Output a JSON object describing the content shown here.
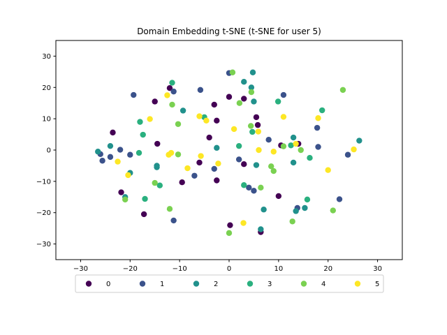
{
  "chart_data": {
    "type": "scatter",
    "title": "Domain Embedding t-SNE (t-SNE for user 5)",
    "xlim": [
      -35,
      35
    ],
    "ylim": [
      -35,
      35
    ],
    "xticks": [
      -30,
      -20,
      -10,
      0,
      10,
      20,
      30
    ],
    "yticks": [
      -30,
      -20,
      -10,
      0,
      10,
      20,
      30
    ],
    "grid": false,
    "legend_position": "bottom-center",
    "series": [
      {
        "name": "0",
        "color": "#440154",
        "points": [
          [
            -12,
            19.8
          ],
          [
            -15,
            15.5
          ],
          [
            -23.5,
            5.6
          ],
          [
            -21.8,
            -13.5
          ],
          [
            -17.2,
            -20.5
          ],
          [
            -14.5,
            2
          ],
          [
            -9.5,
            -10.3
          ],
          [
            -3,
            14.5
          ],
          [
            -4,
            4
          ],
          [
            -6,
            -4
          ],
          [
            -2.5,
            9.4
          ],
          [
            -2.5,
            -9.7
          ],
          [
            0,
            17
          ],
          [
            3,
            16.4
          ],
          [
            5.5,
            10.5
          ],
          [
            5.8,
            8
          ],
          [
            3,
            -4.5
          ],
          [
            0.2,
            -24
          ],
          [
            6.4,
            -26.2
          ],
          [
            10,
            -14.7
          ],
          [
            10.5,
            1.5
          ],
          [
            14,
            2
          ]
        ]
      },
      {
        "name": "1",
        "color": "#3b528b",
        "points": [
          [
            -26,
            -1.3
          ],
          [
            -25.6,
            -3.4
          ],
          [
            -24,
            -2.2
          ],
          [
            -22,
            0.1
          ],
          [
            -20,
            -1.5
          ],
          [
            -19.3,
            17.6
          ],
          [
            -11.2,
            18.7
          ],
          [
            -11.2,
            -22.5
          ],
          [
            -7,
            -8.2
          ],
          [
            -5.8,
            19.2
          ],
          [
            -3,
            -6
          ],
          [
            0,
            24.6
          ],
          [
            2,
            -3
          ],
          [
            4,
            -12
          ],
          [
            5,
            -13
          ],
          [
            8,
            3.3
          ],
          [
            11,
            17.6
          ],
          [
            17.8,
            7.1
          ],
          [
            18,
            1
          ],
          [
            22.3,
            -15.7
          ],
          [
            24,
            -1.5
          ],
          [
            13.8,
            -18.5
          ]
        ]
      },
      {
        "name": "2",
        "color": "#21918c",
        "points": [
          [
            -26.5,
            -0.5
          ],
          [
            -24,
            1.3
          ],
          [
            -21,
            -15
          ],
          [
            -20,
            -7.3
          ],
          [
            -14.6,
            -5
          ],
          [
            -14.6,
            -5.5
          ],
          [
            -9.3,
            12.6
          ],
          [
            -2.5,
            0.7
          ],
          [
            3,
            21.8
          ],
          [
            4.5,
            20
          ],
          [
            4.8,
            24.8
          ],
          [
            5,
            15.5
          ],
          [
            5.5,
            -4.8
          ],
          [
            6.4,
            -25.3
          ],
          [
            7,
            -19
          ],
          [
            13,
            -4
          ],
          [
            13,
            4
          ],
          [
            13.5,
            -19.5
          ],
          [
            15.3,
            -18.5
          ],
          [
            26.3,
            3
          ]
        ]
      },
      {
        "name": "3",
        "color": "#2ab07f",
        "points": [
          [
            -17.4,
            4.9
          ],
          [
            -18,
            9
          ],
          [
            -18.2,
            -0.9
          ],
          [
            -17,
            -15.6
          ],
          [
            -14,
            -11.3
          ],
          [
            -11.5,
            21.5
          ],
          [
            -5,
            10.5
          ],
          [
            2,
            1.3
          ],
          [
            3,
            -11.2
          ],
          [
            4.7,
            5.8
          ],
          [
            9.9,
            15.5
          ],
          [
            12.5,
            1.5
          ],
          [
            15.8,
            -15.8
          ],
          [
            16.3,
            -2.5
          ],
          [
            18.8,
            12.7
          ]
        ]
      },
      {
        "name": "4",
        "color": "#7ad151",
        "points": [
          [
            -21,
            -15.8
          ],
          [
            -15,
            -10.5
          ],
          [
            -12,
            -18.8
          ],
          [
            -11.5,
            14.5
          ],
          [
            -10.3,
            8.3
          ],
          [
            -10.3,
            -1.4
          ],
          [
            0.7,
            24.8
          ],
          [
            2.1,
            15
          ],
          [
            4.4,
            7.7
          ],
          [
            4.5,
            18.5
          ],
          [
            6.4,
            -12
          ],
          [
            8.5,
            -5.2
          ],
          [
            9,
            -6.7
          ],
          [
            11,
            1.2
          ],
          [
            12.8,
            -22.8
          ],
          [
            14.5,
            0
          ],
          [
            21,
            -19.3
          ],
          [
            23,
            19.2
          ],
          [
            0,
            -26.5
          ]
        ]
      },
      {
        "name": "5",
        "color": "#fde725",
        "points": [
          [
            -22.5,
            -3.7
          ],
          [
            -20.4,
            -8
          ],
          [
            -16,
            9.9
          ],
          [
            -12.5,
            17.5
          ],
          [
            -12.2,
            -1.5
          ],
          [
            -11.7,
            -0.9
          ],
          [
            -8.4,
            -5.8
          ],
          [
            -6,
            10.8
          ],
          [
            -5.7,
            -1.9
          ],
          [
            -4.6,
            9.4
          ],
          [
            -2.2,
            -4.3
          ],
          [
            1,
            6.7
          ],
          [
            2.9,
            -23.3
          ],
          [
            5.9,
            5.9
          ],
          [
            6,
            0
          ],
          [
            9,
            -0.5
          ],
          [
            11,
            10.6
          ],
          [
            13.5,
            2
          ],
          [
            18,
            10.2
          ],
          [
            20,
            -6.4
          ],
          [
            25.2,
            0.2
          ]
        ]
      }
    ]
  }
}
